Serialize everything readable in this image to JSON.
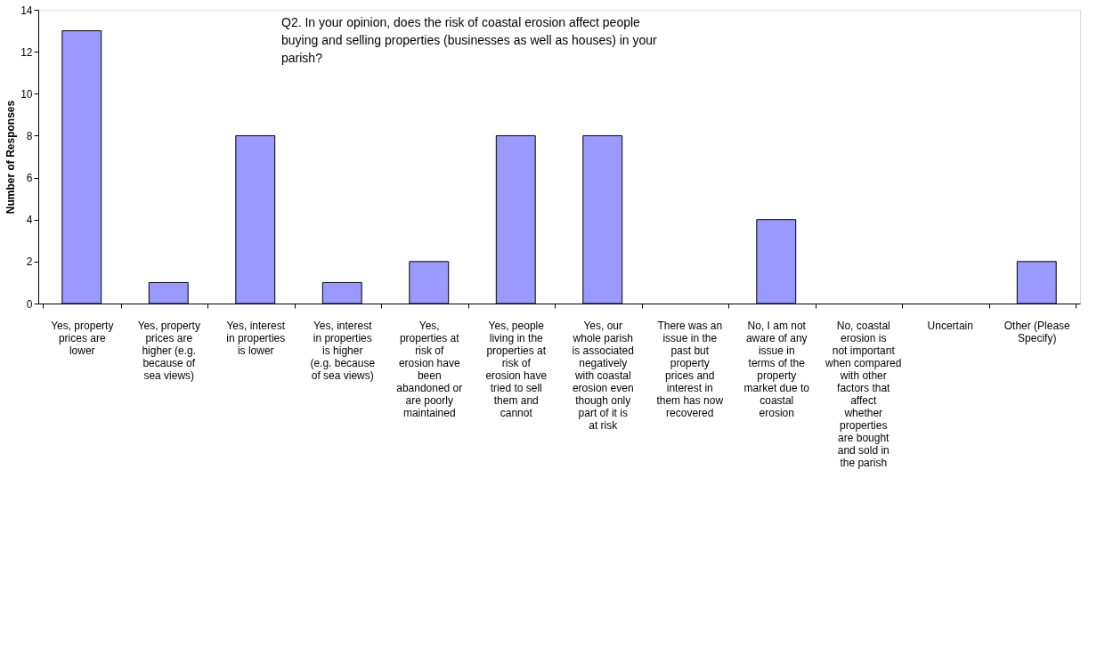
{
  "chart_data": {
    "type": "bar",
    "ylabel": "Number of Responses",
    "categories": [
      "Yes, property prices are lower",
      "Yes, property prices are higher (e.g. because of sea views)",
      "Yes, interest in properties is lower",
      "Yes, interest in properties is higher (e.g. because of sea views)",
      "Yes, properties at risk of erosion have been abandoned or are poorly maintained",
      "Yes, people living in the properties at risk of erosion have tried to sell them and cannot",
      "Yes, our whole parish is associated negatively with coastal erosion even though only part of it is at risk",
      "There was an issue in the past but property prices and interest in them has now recovered",
      "No, I am not aware of any issue in terms of the property market due to coastal erosion",
      "No, coastal erosion is not important when compared with other factors that affect whether properties are bought and sold in the parish",
      "Uncertain",
      "Other (Please Specify)"
    ],
    "values": [
      13,
      1,
      8,
      1,
      2,
      8,
      8,
      0,
      4,
      0,
      0,
      2
    ],
    "color": "#9999ff",
    "ylim": [
      0,
      14
    ],
    "yticks": [
      0,
      2,
      4,
      6,
      8,
      10,
      12,
      14
    ],
    "grid": false,
    "annotations": [
      "Q2.  In your opinion, does the risk of coastal erosion affect people buying and selling properties (businesses as well as houses) in your parish?"
    ]
  }
}
